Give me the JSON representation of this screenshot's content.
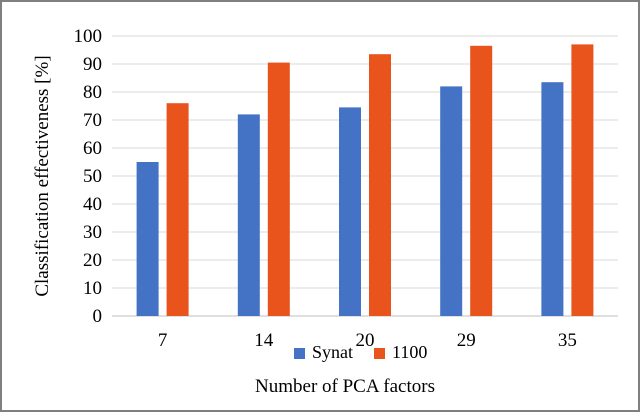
{
  "chart_data": {
    "type": "bar",
    "title": "",
    "xlabel": "Number of PCA factors",
    "ylabel": "Classification effectiveness [%]",
    "categories": [
      "7",
      "14",
      "20",
      "29",
      "35"
    ],
    "series": [
      {
        "name": "Synat",
        "values": [
          55,
          72,
          74.5,
          82,
          83.5
        ],
        "color": "#4472C4"
      },
      {
        "name": "1100",
        "values": [
          76,
          90.5,
          93.5,
          96.5,
          97
        ],
        "color": "#E8541C"
      }
    ],
    "ylim": [
      0,
      100
    ],
    "yticks": [
      0,
      10,
      20,
      30,
      40,
      50,
      60,
      70,
      80,
      90,
      100
    ],
    "grid": true,
    "legend_position": "bottom"
  }
}
